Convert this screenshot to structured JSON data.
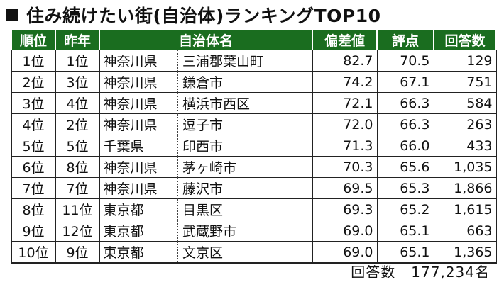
{
  "title": "住み続けたい街(自治体)ランキングTOP10",
  "headers": {
    "rank": "順位",
    "prev": "昨年",
    "name": "自治体名",
    "deviation": "偏差値",
    "score": "評点",
    "responses": "回答数"
  },
  "rows": [
    {
      "rank": "1位",
      "prev": "1位",
      "pref": "神奈川県",
      "city": "三浦郡葉山町",
      "deviation": "82.7",
      "score": "70.5",
      "responses": "129"
    },
    {
      "rank": "2位",
      "prev": "3位",
      "pref": "神奈川県",
      "city": "鎌倉市",
      "deviation": "74.2",
      "score": "67.1",
      "responses": "751"
    },
    {
      "rank": "3位",
      "prev": "4位",
      "pref": "神奈川県",
      "city": "横浜市西区",
      "deviation": "72.1",
      "score": "66.3",
      "responses": "584"
    },
    {
      "rank": "4位",
      "prev": "2位",
      "pref": "神奈川県",
      "city": "逗子市",
      "deviation": "72.0",
      "score": "66.3",
      "responses": "263"
    },
    {
      "rank": "5位",
      "prev": "5位",
      "pref": "千葉県",
      "city": "印西市",
      "deviation": "71.3",
      "score": "66.0",
      "responses": "433"
    },
    {
      "rank": "6位",
      "prev": "8位",
      "pref": "神奈川県",
      "city": "茅ヶ崎市",
      "deviation": "70.3",
      "score": "65.6",
      "responses": "1,035"
    },
    {
      "rank": "7位",
      "prev": "7位",
      "pref": "神奈川県",
      "city": "藤沢市",
      "deviation": "69.5",
      "score": "65.3",
      "responses": "1,866"
    },
    {
      "rank": "8位",
      "prev": "11位",
      "pref": "東京都",
      "city": "目黒区",
      "deviation": "69.3",
      "score": "65.2",
      "responses": "1,615"
    },
    {
      "rank": "9位",
      "prev": "12位",
      "pref": "東京都",
      "city": "武蔵野市",
      "deviation": "69.0",
      "score": "65.1",
      "responses": "663"
    },
    {
      "rank": "10位",
      "prev": "9位",
      "pref": "東京都",
      "city": "文京区",
      "deviation": "69.0",
      "score": "65.1",
      "responses": "1,365"
    }
  ],
  "footer": {
    "label": "回答数",
    "total": "177,234名"
  },
  "colors": {
    "header_bg": "#1a6d1f",
    "header_text": "#ffffff"
  }
}
